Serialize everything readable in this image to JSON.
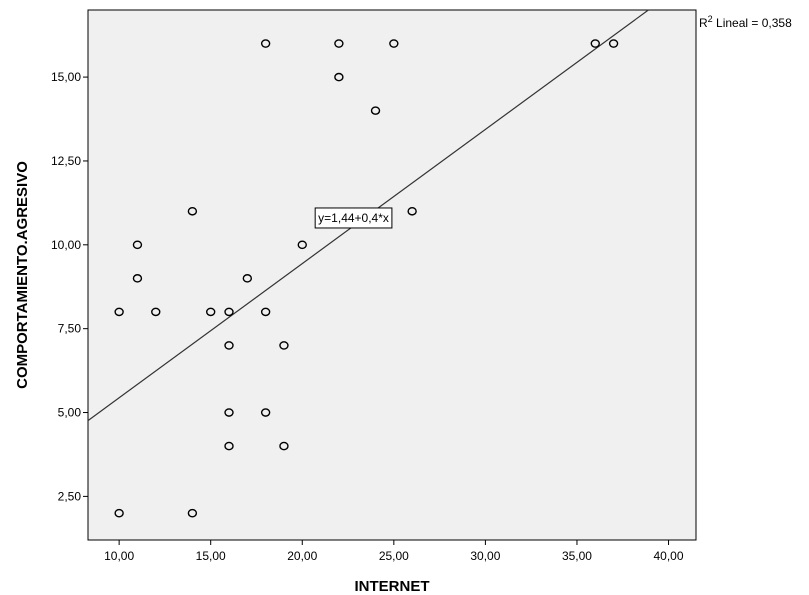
{
  "chart_data": {
    "type": "scatter",
    "title": "",
    "xlabel": "INTERNET",
    "ylabel": "COMPORTAMIENTO.AGRESIVO",
    "xlim": [
      8.3,
      41.5
    ],
    "ylim": [
      1.2,
      17.0
    ],
    "x_ticks": [
      10,
      15,
      20,
      25,
      30,
      35,
      40
    ],
    "x_tick_labels": [
      "10,00",
      "15,00",
      "20,00",
      "25,00",
      "30,00",
      "35,00",
      "40,00"
    ],
    "y_ticks": [
      2.5,
      5,
      7.5,
      10,
      12.5,
      15
    ],
    "y_tick_labels": [
      "2,50",
      "5,00",
      "7,50",
      "10,00",
      "12,50",
      "15,00"
    ],
    "grid": false,
    "background": "#f0f0f0",
    "points": [
      {
        "x": 10,
        "y": 8
      },
      {
        "x": 10,
        "y": 2
      },
      {
        "x": 11,
        "y": 10
      },
      {
        "x": 11,
        "y": 9
      },
      {
        "x": 12,
        "y": 8
      },
      {
        "x": 14,
        "y": 11
      },
      {
        "x": 14,
        "y": 2
      },
      {
        "x": 15,
        "y": 8
      },
      {
        "x": 16,
        "y": 8
      },
      {
        "x": 16,
        "y": 7
      },
      {
        "x": 16,
        "y": 5
      },
      {
        "x": 16,
        "y": 4
      },
      {
        "x": 17,
        "y": 9
      },
      {
        "x": 18,
        "y": 16
      },
      {
        "x": 18,
        "y": 8
      },
      {
        "x": 18,
        "y": 5
      },
      {
        "x": 19,
        "y": 7
      },
      {
        "x": 19,
        "y": 4
      },
      {
        "x": 20,
        "y": 10
      },
      {
        "x": 22,
        "y": 16
      },
      {
        "x": 22,
        "y": 15
      },
      {
        "x": 24,
        "y": 14
      },
      {
        "x": 25,
        "y": 16
      },
      {
        "x": 26,
        "y": 11
      },
      {
        "x": 36,
        "y": 16
      },
      {
        "x": 37,
        "y": 16
      }
    ],
    "fit_line": {
      "intercept": 1.44,
      "slope": 0.4
    },
    "equation_label": "y=1,44+0,4*x",
    "equation_anchor": {
      "x": 22.8,
      "y": 10.8
    },
    "r2_label": {
      "prefix": "R",
      "sup": "2",
      "text": " Lineal = 0,358"
    }
  }
}
